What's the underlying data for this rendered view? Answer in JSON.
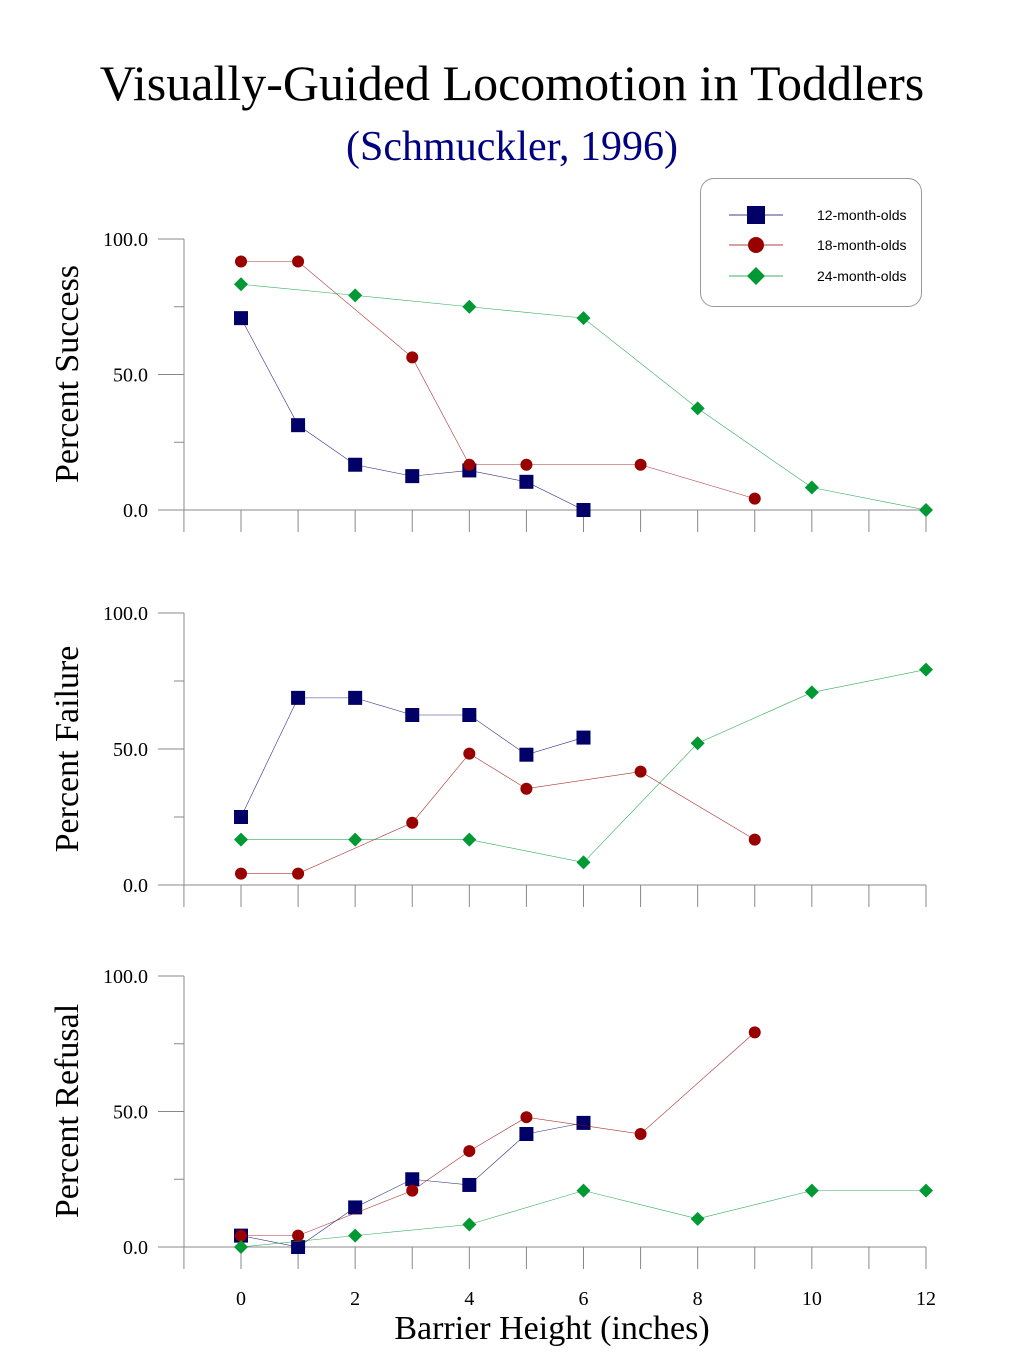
{
  "title": "Visually-Guided Locomotion in Toddlers",
  "subtitle": "(Schmuckler, 1996)",
  "legend": [
    {
      "name": "12-month-olds",
      "color": "#000066",
      "marker": "square"
    },
    {
      "name": "18-month-olds",
      "color": "#990000",
      "marker": "circle"
    },
    {
      "name": "24-month-olds",
      "color": "#009933",
      "marker": "diamond"
    }
  ],
  "xlabel": "Barrier Height (inches)",
  "chart_data": [
    {
      "type": "line",
      "ylabel": "Percent Success",
      "ylim": [
        0,
        100
      ],
      "yticks": [
        "0.0",
        "50.0",
        "100.0"
      ],
      "xlim": [
        -1,
        12
      ],
      "series": [
        {
          "name": "12-month-olds",
          "x": [
            0,
            1,
            2,
            3,
            4,
            5,
            6
          ],
          "values": [
            70.8,
            31.3,
            16.7,
            12.5,
            14.6,
            10.4,
            0
          ]
        },
        {
          "name": "18-month-olds",
          "x": [
            0,
            1,
            3,
            4,
            5,
            7,
            9
          ],
          "values": [
            91.7,
            91.7,
            56.3,
            16.7,
            16.7,
            16.7,
            4.2
          ]
        },
        {
          "name": "24-month-olds",
          "x": [
            0,
            2,
            4,
            6,
            8,
            10,
            12
          ],
          "values": [
            83.3,
            79.2,
            75.0,
            70.8,
            37.5,
            8.3,
            0
          ]
        }
      ]
    },
    {
      "type": "line",
      "ylabel": "Percent Failure",
      "ylim": [
        0,
        100
      ],
      "yticks": [
        "0.0",
        "50.0",
        "100.0"
      ],
      "xlim": [
        -1,
        12
      ],
      "series": [
        {
          "name": "12-month-olds",
          "x": [
            0,
            1,
            2,
            3,
            4,
            5,
            6
          ],
          "values": [
            25.0,
            68.8,
            68.8,
            62.5,
            62.5,
            47.9,
            54.2
          ]
        },
        {
          "name": "18-month-olds",
          "x": [
            0,
            1,
            3,
            4,
            5,
            7,
            9
          ],
          "values": [
            4.2,
            4.2,
            22.9,
            48.3,
            35.4,
            41.7,
            16.7
          ]
        },
        {
          "name": "24-month-olds",
          "x": [
            0,
            2,
            4,
            6,
            8,
            10,
            12
          ],
          "values": [
            16.7,
            16.7,
            16.7,
            8.3,
            52.1,
            70.8,
            79.2
          ]
        }
      ]
    },
    {
      "type": "line",
      "ylabel": "Percent Refusal",
      "ylim": [
        0,
        100
      ],
      "yticks": [
        "0.0",
        "50.0",
        "100.0"
      ],
      "xlim": [
        -1,
        12
      ],
      "xticks": [
        "0",
        "2",
        "4",
        "6",
        "8",
        "10",
        "12"
      ],
      "series": [
        {
          "name": "12-month-olds",
          "x": [
            0,
            1,
            2,
            3,
            4,
            5,
            6
          ],
          "values": [
            4.2,
            0,
            14.6,
            25.0,
            22.9,
            41.7,
            45.8
          ]
        },
        {
          "name": "18-month-olds",
          "x": [
            0,
            1,
            3,
            4,
            5,
            7,
            9
          ],
          "values": [
            4.2,
            4.2,
            20.8,
            35.4,
            47.9,
            41.7,
            79.2
          ]
        },
        {
          "name": "24-month-olds",
          "x": [
            0,
            2,
            4,
            6,
            8,
            10,
            12
          ],
          "values": [
            0,
            4.2,
            8.3,
            20.8,
            10.4,
            20.8,
            20.8
          ]
        }
      ]
    }
  ]
}
